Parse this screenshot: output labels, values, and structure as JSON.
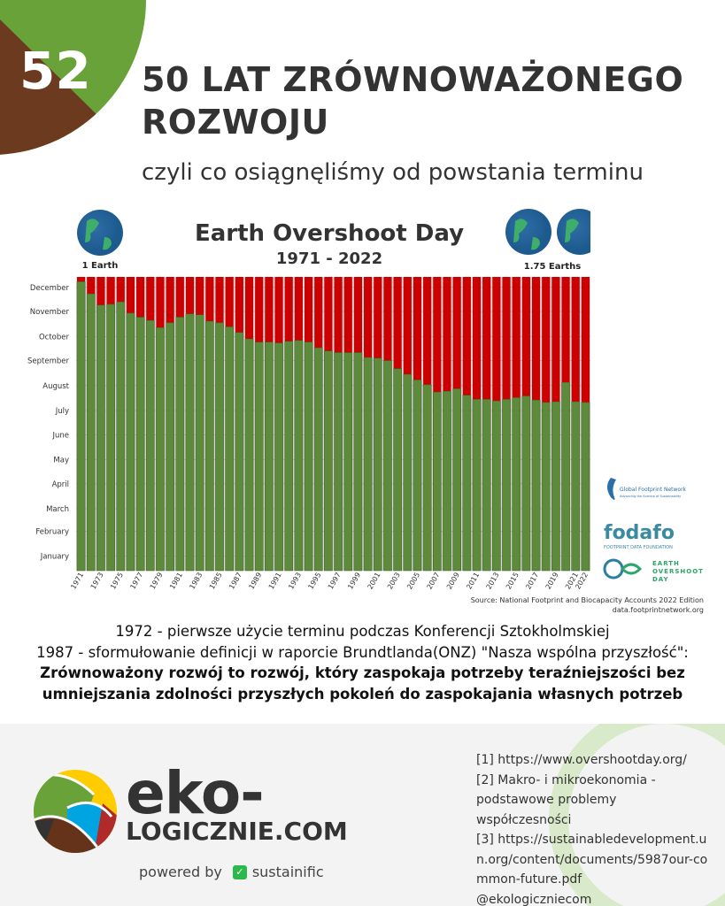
{
  "badge_number": "52",
  "header": {
    "title_line1": "50 LAT ZRÓWNOWAŻONEGO",
    "title_line2": "ROZWOJU",
    "subtitle": "czyli co osiągnęliśmy od powstania terminu"
  },
  "colors": {
    "corner_green": "#6aa23a",
    "corner_brown": "#6b3a1f",
    "bar_green": "#5e8a3c",
    "bar_red": "#cc0000"
  },
  "chart_data": {
    "type": "bar",
    "title": "Earth Overshoot Day",
    "subtitle": "1971 - 2022",
    "left_icon_label": "1 Earth",
    "right_icon_label": "1.75 Earths",
    "y_tick_labels": [
      "January",
      "February",
      "March",
      "April",
      "May",
      "June",
      "July",
      "August",
      "September",
      "October",
      "November",
      "December"
    ],
    "x_tick_labels": [
      "1971",
      "1973",
      "1975",
      "1977",
      "1979",
      "1981",
      "1983",
      "1985",
      "1987",
      "1989",
      "1991",
      "1993",
      "1995",
      "1997",
      "1999",
      "2001",
      "2003",
      "2005",
      "2007",
      "2009",
      "2011",
      "2013",
      "2015",
      "2017",
      "2019",
      "2021",
      "2022"
    ],
    "categories": [
      "1971",
      "1972",
      "1973",
      "1974",
      "1975",
      "1976",
      "1977",
      "1978",
      "1979",
      "1980",
      "1981",
      "1982",
      "1983",
      "1984",
      "1985",
      "1986",
      "1987",
      "1988",
      "1989",
      "1990",
      "1991",
      "1992",
      "1993",
      "1994",
      "1995",
      "1996",
      "1997",
      "1998",
      "1999",
      "2000",
      "2001",
      "2002",
      "2003",
      "2004",
      "2005",
      "2006",
      "2007",
      "2008",
      "2009",
      "2010",
      "2011",
      "2012",
      "2013",
      "2014",
      "2015",
      "2016",
      "2017",
      "2018",
      "2019",
      "2020",
      "2021",
      "2022"
    ],
    "values": [
      "12-25",
      "12-10",
      "11-26",
      "11-27",
      "11-30",
      "11-16",
      "11-11",
      "11-07",
      "10-29",
      "11-04",
      "11-11",
      "11-15",
      "11-14",
      "11-06",
      "11-04",
      "10-30",
      "10-23",
      "10-15",
      "10-11",
      "10-11",
      "10-10",
      "10-12",
      "10-13",
      "10-11",
      "10-04",
      "09-30",
      "09-28",
      "09-28",
      "09-28",
      "09-22",
      "09-21",
      "09-18",
      "09-08",
      "09-01",
      "08-25",
      "08-19",
      "08-10",
      "08-11",
      "08-14",
      "08-06",
      "08-01",
      "08-01",
      "07-30",
      "08-01",
      "08-03",
      "08-05",
      "07-31",
      "07-28",
      "07-29",
      "08-22",
      "07-29",
      "07-28"
    ],
    "ylim": [
      "01-01",
      "12-31"
    ],
    "grid": true,
    "source": "Source: National Footprint and Biocapacity Accounts 2022 Edition",
    "source_url": "data.footprintnetwork.org"
  },
  "partner_logos": {
    "gfn": "Global Footprint Network",
    "gfn_tagline": "Advancing the Science of Sustainability",
    "fodafo": "fodafo",
    "fodafo_sub": "FOOTPRINT DATA FOUNDATION",
    "eod": "EARTH OVERSHOOT DAY"
  },
  "notes": {
    "line1": "1972 - pierwsze użycie terminu podczas Konferencji Sztokholmskiej",
    "line2": "1987 - sformułowanie definicji w raporcie Brundtlanda(ONZ) \"Nasza wspólna przyszłość\":",
    "line3": "Zrównoważony rozwój to rozwój, który zaspokaja potrzeby teraźniejszości bez",
    "line4": "umniejszania zdolności przyszłych pokoleń do zaspokajania własnych potrzeb"
  },
  "footer": {
    "brand_top": "eko-",
    "brand_bottom": "LOGICZNIE.COM",
    "powered_by": "powered by",
    "partner": "sustainific",
    "references": [
      "[1] https://www.overshootday.org/",
      "[2]  Makro- i mikroekonomia - podstawowe problemy współczesności",
      "[3] https://sustainabledevelopment.un.org/content/documents/5987our-common-future.pdf",
      "@ekologiczniecom"
    ]
  }
}
